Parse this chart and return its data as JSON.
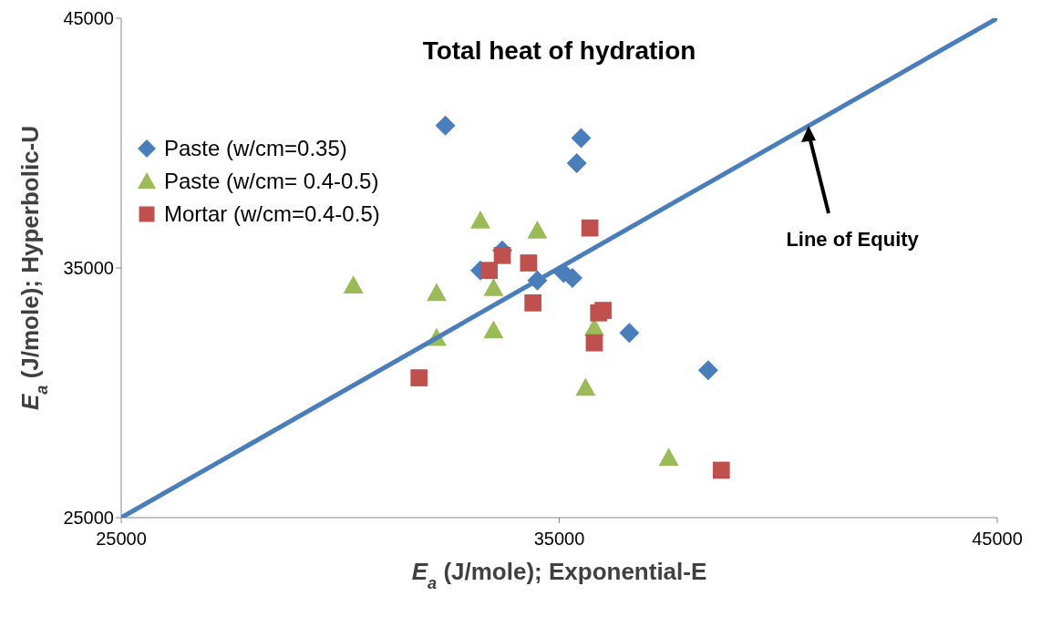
{
  "chart_data": {
    "type": "scatter",
    "title": "Total heat of hydration",
    "xlabel": "E$_{a}$ (J/mole); Exponential-E",
    "ylabel": "E$_{a}$ (J/mole); Hyperbolic-U",
    "xlim": [
      25000,
      45000
    ],
    "xticks": [
      25000,
      35000,
      45000
    ],
    "ylim": [
      25000,
      45000
    ],
    "yticks": [
      25000,
      35000,
      45000
    ],
    "legend": "top left",
    "series": [
      {
        "name": "Paste (w/cm=0.35)",
        "color": "#4a7ebb",
        "marker": "diamond",
        "x": [
          32400,
          35500,
          35400,
          33700,
          33200,
          35100,
          34500,
          35300,
          36600,
          38400
        ],
        "values": [
          40700,
          40200,
          39200,
          35700,
          34900,
          34800,
          34500,
          34600,
          32400,
          30900
        ]
      },
      {
        "name": "Paste (w/cm= 0.4-0.5)",
        "color": "#9bbb59",
        "marker": "triangle",
        "x": [
          30300,
          33200,
          34500,
          32200,
          33500,
          32200,
          33500,
          35800,
          35600,
          37500
        ],
        "values": [
          34300,
          36900,
          36500,
          34000,
          34200,
          32200,
          32500,
          32600,
          30200,
          27400
        ]
      },
      {
        "name": "Mortar (w/cm=0.4-0.5)",
        "color": "#c0504d",
        "marker": "square",
        "x": [
          35700,
          33700,
          33400,
          34300,
          34400,
          35900,
          36000,
          35800,
          31800,
          38700
        ],
        "values": [
          36600,
          35500,
          34900,
          35200,
          33600,
          33200,
          33300,
          32000,
          30600,
          26900
        ]
      },
      {
        "type": "line",
        "color": "#4a7ebb",
        "marker": "none",
        "x": [
          25000,
          45000
        ],
        "values": [
          25000,
          45000
        ]
      }
    ],
    "annotations": [
      {
        "text": "Line of Equity",
        "x": 40700,
        "y": 40700
      }
    ]
  }
}
